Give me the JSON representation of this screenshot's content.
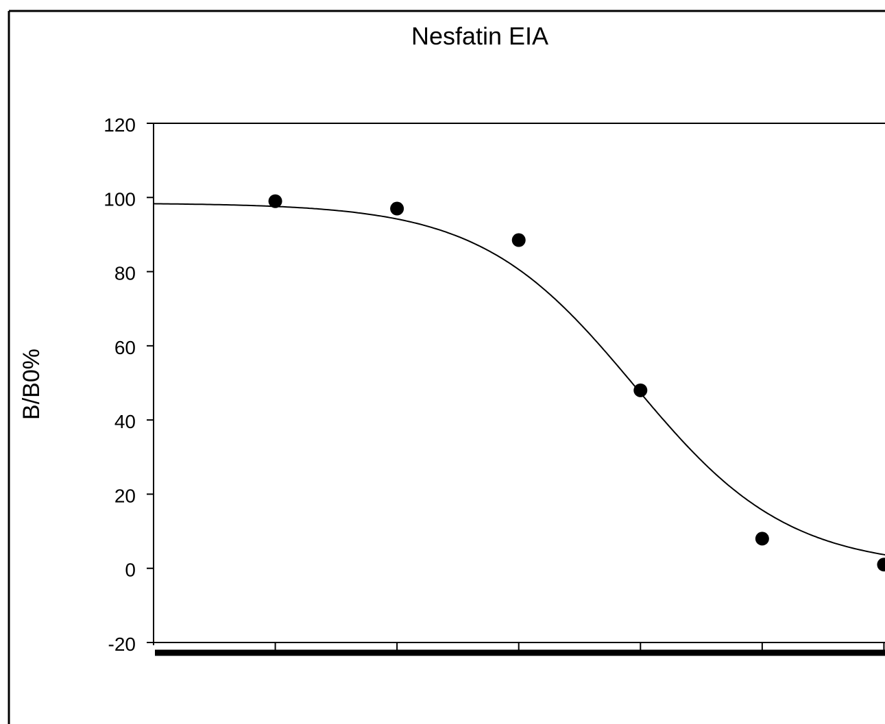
{
  "chart_data": {
    "type": "line",
    "title": "Nesfatin EIA",
    "xlabel": "",
    "ylabel": "B/B0%",
    "ylim": [
      -20,
      120
    ],
    "yticks": [
      -20,
      0,
      20,
      40,
      60,
      80,
      100,
      120
    ],
    "grid": false,
    "series": [
      {
        "kind": "points",
        "x": [
          1,
          2,
          3,
          4,
          5,
          6
        ],
        "y": [
          99,
          97,
          88.5,
          48,
          8,
          1
        ]
      },
      {
        "kind": "fit-curve",
        "model": "4PL",
        "top": 98.5,
        "bottom": 0,
        "midpoint_x": 3.95,
        "slope": 2.75
      }
    ],
    "xlim": [
      0,
      7
    ],
    "xticks": [
      1,
      2,
      3,
      4,
      5,
      6
    ],
    "colors": {
      "line": "#000000",
      "marker": "#000000",
      "background": "#ffffff"
    }
  }
}
